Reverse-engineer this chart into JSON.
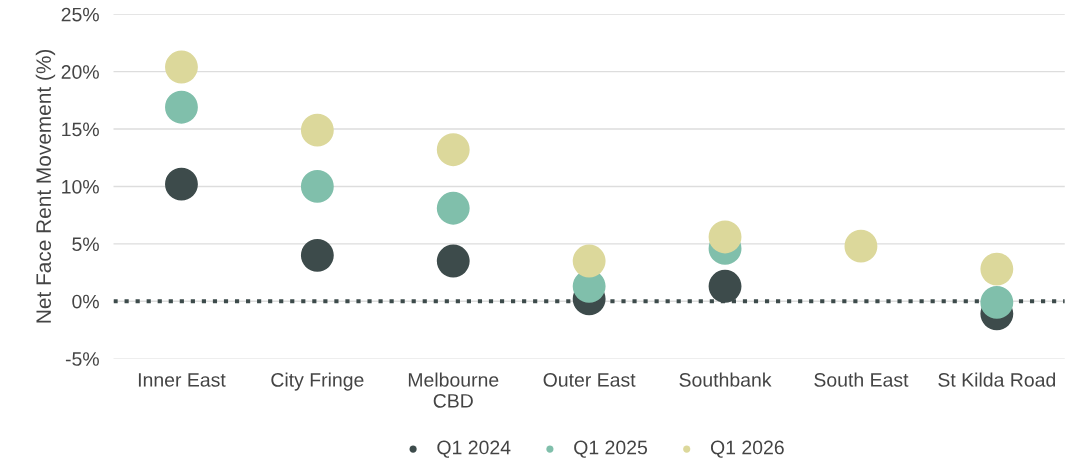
{
  "chart_data": {
    "type": "scatter",
    "ylabel": "Net Face Rent Movement (%)",
    "categories": [
      "Inner East",
      "City Fringe",
      "Melbourne\nCBD",
      "Outer East",
      "Southbank",
      "South East",
      "St Kilda Road"
    ],
    "series": [
      {
        "name": "Q1 2024",
        "color": "#3d4b4b",
        "values": [
          10.2,
          4.0,
          3.5,
          0.2,
          1.3,
          null,
          -1.1
        ]
      },
      {
        "name": "Q1 2025",
        "color": "#80bfab",
        "values": [
          16.9,
          10.0,
          8.1,
          1.3,
          4.6,
          null,
          -0.1
        ]
      },
      {
        "name": "Q1 2026",
        "color": "#dcd89b",
        "values": [
          20.4,
          14.9,
          13.2,
          3.5,
          5.6,
          4.8,
          2.8
        ]
      }
    ],
    "ylim": [
      -5,
      25
    ],
    "yticks": [
      {
        "value": -5,
        "label": "-5%"
      },
      {
        "value": 0,
        "label": "0%"
      },
      {
        "value": 5,
        "label": "5%"
      },
      {
        "value": 10,
        "label": "10%"
      },
      {
        "value": 15,
        "label": "15%"
      },
      {
        "value": 20,
        "label": "20%"
      },
      {
        "value": 25,
        "label": "25%"
      }
    ],
    "grid": "y",
    "legend": "bottom",
    "marker": "circle",
    "ref_lines": [
      {
        "axis": "y",
        "value": 0,
        "color": "#3d4b4b",
        "line_style": "dotted"
      }
    ]
  }
}
